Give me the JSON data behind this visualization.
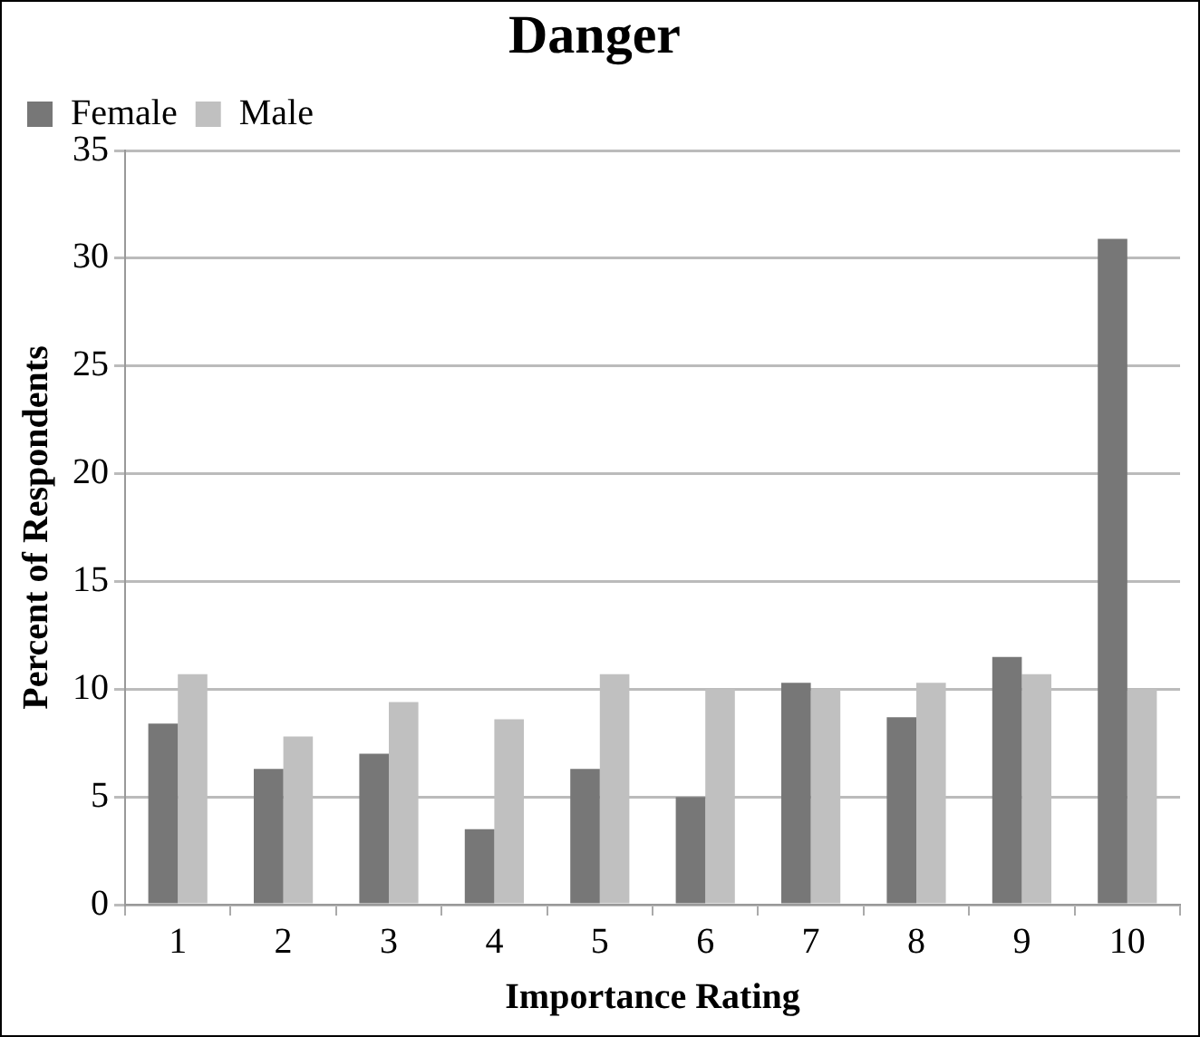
{
  "chart_data": {
    "type": "bar",
    "title": "Danger",
    "xlabel": "Importance Rating",
    "ylabel": "Percent of Respondents",
    "categories": [
      "1",
      "2",
      "3",
      "4",
      "5",
      "6",
      "7",
      "8",
      "9",
      "10"
    ],
    "series": [
      {
        "name": "Female",
        "color": "#777777",
        "values": [
          8.4,
          6.3,
          7.0,
          3.5,
          6.3,
          5.0,
          10.3,
          8.7,
          11.5,
          30.9
        ]
      },
      {
        "name": "Male",
        "color": "#c0c0c0",
        "values": [
          10.7,
          7.8,
          9.4,
          8.6,
          10.7,
          10.0,
          10.0,
          10.3,
          10.7,
          10.0
        ]
      }
    ],
    "ylim": [
      0,
      35
    ],
    "yticks": [
      0,
      5,
      10,
      15,
      20,
      25,
      30,
      35
    ],
    "grid": "y",
    "legend": "top left"
  }
}
